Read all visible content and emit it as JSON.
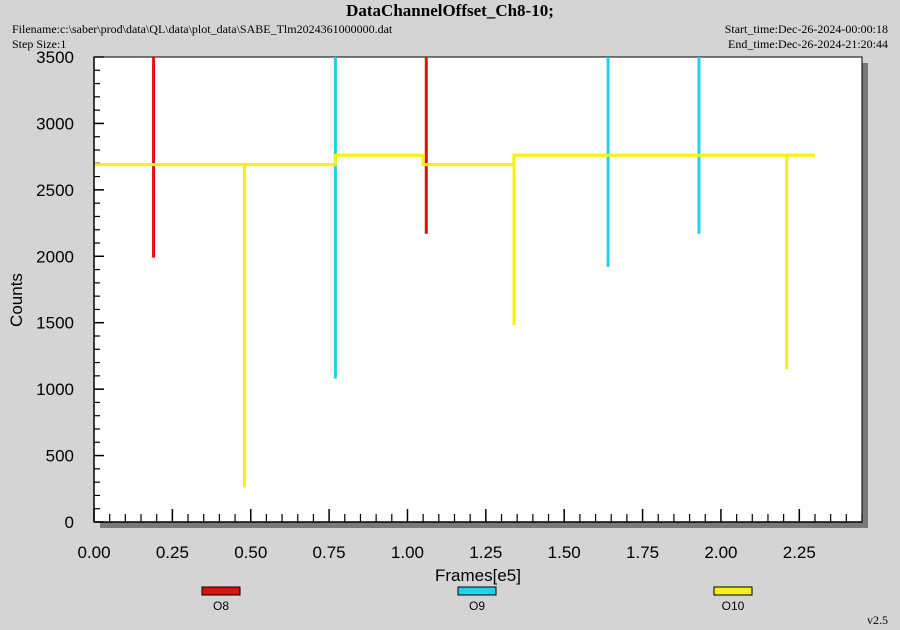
{
  "header": {
    "title": "DataChannelOffset_Ch8-10;",
    "filename": "Filename:c:\\saber\\prod\\data\\QL\\data\\plot_data\\SABE_Tlm2024361000000.dat",
    "step_size": "Step Size:1",
    "start_time": "Start_time:Dec-26-2024-00:00:18",
    "end_time": "End_time:Dec-26-2024-21:20:44"
  },
  "footer": {
    "version": "v2.5"
  },
  "colors": {
    "O8": "#e01010",
    "O9": "#22d0e8",
    "O10": "#f8f010"
  },
  "chart_data": {
    "type": "line",
    "title": "DataChannelOffset_Ch8-10;",
    "xlabel": "Frames[e5]",
    "ylabel": "Counts",
    "xlim": [
      0,
      2.45
    ],
    "ylim": [
      0,
      3500
    ],
    "xticks": [
      0.0,
      0.25,
      0.5,
      0.75,
      1.0,
      1.25,
      1.5,
      1.75,
      2.0,
      2.25
    ],
    "xtick_labels": [
      "0.00",
      "0.25",
      "0.50",
      "0.75",
      "1.00",
      "1.25",
      "1.50",
      "1.75",
      "2.00",
      "2.25"
    ],
    "yticks": [
      0,
      500,
      1000,
      1500,
      2000,
      2500,
      3000,
      3500
    ],
    "ytick_labels": [
      "0",
      "500",
      "1000",
      "1500",
      "2000",
      "2500",
      "3000",
      "3500"
    ],
    "grid": false,
    "legend_position": "bottom",
    "series": [
      {
        "name": "O8",
        "color": "#e01010",
        "spikes": [
          {
            "x": 0.19,
            "y_low": 1990,
            "y_high": 3500
          },
          {
            "x": 1.06,
            "y_low": 2170,
            "y_high": 3500
          }
        ]
      },
      {
        "name": "O9",
        "color": "#22d0e8",
        "spikes": [
          {
            "x": 0.77,
            "y_low": 1080,
            "y_high": 3500
          },
          {
            "x": 1.64,
            "y_low": 1920,
            "y_high": 3500
          },
          {
            "x": 1.93,
            "y_low": 2170,
            "y_high": 3500
          }
        ]
      },
      {
        "name": "O10",
        "color": "#f8f010",
        "baseline": [
          {
            "x": 0.0,
            "y": 2690
          },
          {
            "x": 0.77,
            "y": 2690
          },
          {
            "x": 0.77,
            "y": 2760
          },
          {
            "x": 1.05,
            "y": 2760
          },
          {
            "x": 1.05,
            "y": 2690
          },
          {
            "x": 1.34,
            "y": 2690
          },
          {
            "x": 1.34,
            "y": 2760
          },
          {
            "x": 2.3,
            "y": 2760
          }
        ],
        "spikes": [
          {
            "x": 0.48,
            "y_low": 260,
            "y_high": 2690
          },
          {
            "x": 1.34,
            "y_low": 1480,
            "y_high": 2760
          },
          {
            "x": 2.21,
            "y_low": 1150,
            "y_high": 2760
          }
        ]
      }
    ]
  }
}
